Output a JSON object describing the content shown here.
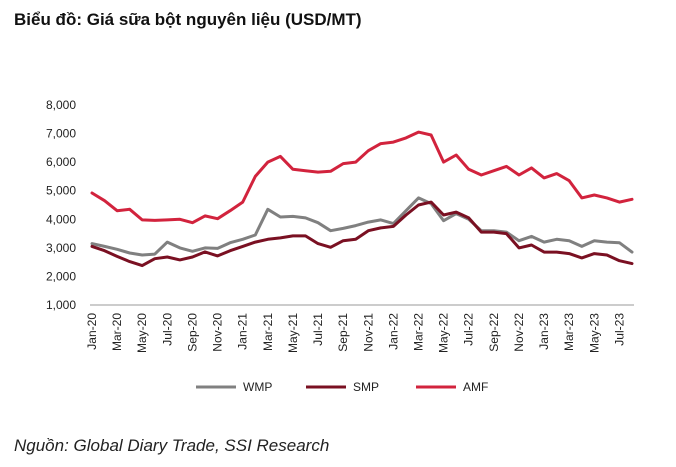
{
  "title": "Biểu đồ: Giá sữa bột nguyên liệu (USD/MT)",
  "source": "Nguồn: Global Diary Trade, SSI Research",
  "chart_data": {
    "type": "line",
    "title": "Biểu đồ: Giá sữa bột nguyên liệu (USD/MT)",
    "xlabel": "",
    "ylabel": "",
    "ylim": [
      1000,
      8000
    ],
    "yticks": [
      "1,000",
      "2,000",
      "3,000",
      "4,000",
      "5,000",
      "6,000",
      "7,000",
      "8,000"
    ],
    "ytick_values": [
      1000,
      2000,
      3000,
      4000,
      5000,
      6000,
      7000,
      8000
    ],
    "grid": false,
    "legend_position": "bottom",
    "categories": [
      "Jan-20",
      "Feb-20",
      "Mar-20",
      "Apr-20",
      "May-20",
      "Jun-20",
      "Jul-20",
      "Aug-20",
      "Sep-20",
      "Oct-20",
      "Nov-20",
      "Dec-20",
      "Jan-21",
      "Feb-21",
      "Mar-21",
      "Apr-21",
      "May-21",
      "Jun-21",
      "Jul-21",
      "Aug-21",
      "Sep-21",
      "Oct-21",
      "Nov-21",
      "Dec-21",
      "Jan-22",
      "Feb-22",
      "Mar-22",
      "Apr-22",
      "May-22",
      "Jun-22",
      "Jul-22",
      "Aug-22",
      "Sep-22",
      "Oct-22",
      "Nov-22",
      "Dec-22",
      "Jan-23",
      "Feb-23",
      "Mar-23",
      "Apr-23",
      "May-23",
      "Jun-23",
      "Jul-23",
      "Aug-23"
    ],
    "x_tick_labels": [
      "Jan-20",
      "Mar-20",
      "May-20",
      "Jul-20",
      "Sep-20",
      "Nov-20",
      "Jan-21",
      "Mar-21",
      "May-21",
      "Jul-21",
      "Sep-21",
      "Nov-21",
      "Jan-22",
      "Mar-22",
      "May-22",
      "Jul-22",
      "Sep-22",
      "Nov-22",
      "Jan-23",
      "Mar-23",
      "May-23",
      "Jul-23"
    ],
    "series": [
      {
        "name": "WMP",
        "color": "#808080",
        "values": [
          3150,
          3050,
          2950,
          2820,
          2750,
          2780,
          3200,
          3000,
          2880,
          3000,
          2980,
          3180,
          3300,
          3450,
          4350,
          4080,
          4100,
          4050,
          3880,
          3600,
          3680,
          3780,
          3900,
          3980,
          3850,
          4300,
          4750,
          4550,
          3950,
          4200,
          4000,
          3600,
          3600,
          3550,
          3250,
          3400,
          3200,
          3300,
          3250,
          3050,
          3250,
          3200,
          3180,
          2850
        ]
      },
      {
        "name": "SMP",
        "color": "#7a1022",
        "values": [
          3050,
          2900,
          2700,
          2520,
          2380,
          2620,
          2680,
          2580,
          2680,
          2860,
          2720,
          2900,
          3050,
          3200,
          3300,
          3350,
          3420,
          3420,
          3150,
          3020,
          3250,
          3300,
          3600,
          3700,
          3750,
          4150,
          4500,
          4600,
          4150,
          4250,
          4050,
          3550,
          3550,
          3500,
          3000,
          3100,
          2850,
          2850,
          2800,
          2650,
          2800,
          2750,
          2550,
          2450
        ]
      },
      {
        "name": "AMF",
        "color": "#d2233d",
        "values": [
          4920,
          4650,
          4300,
          4350,
          3980,
          3960,
          3980,
          4000,
          3880,
          4120,
          4020,
          4300,
          4600,
          5500,
          6000,
          6200,
          5750,
          5700,
          5650,
          5680,
          5950,
          6000,
          6400,
          6650,
          6700,
          6850,
          7050,
          6950,
          6000,
          6250,
          5750,
          5550,
          5700,
          5850,
          5550,
          5800,
          5450,
          5600,
          5350,
          4750,
          4850,
          4750,
          4600,
          4700
        ]
      }
    ]
  }
}
